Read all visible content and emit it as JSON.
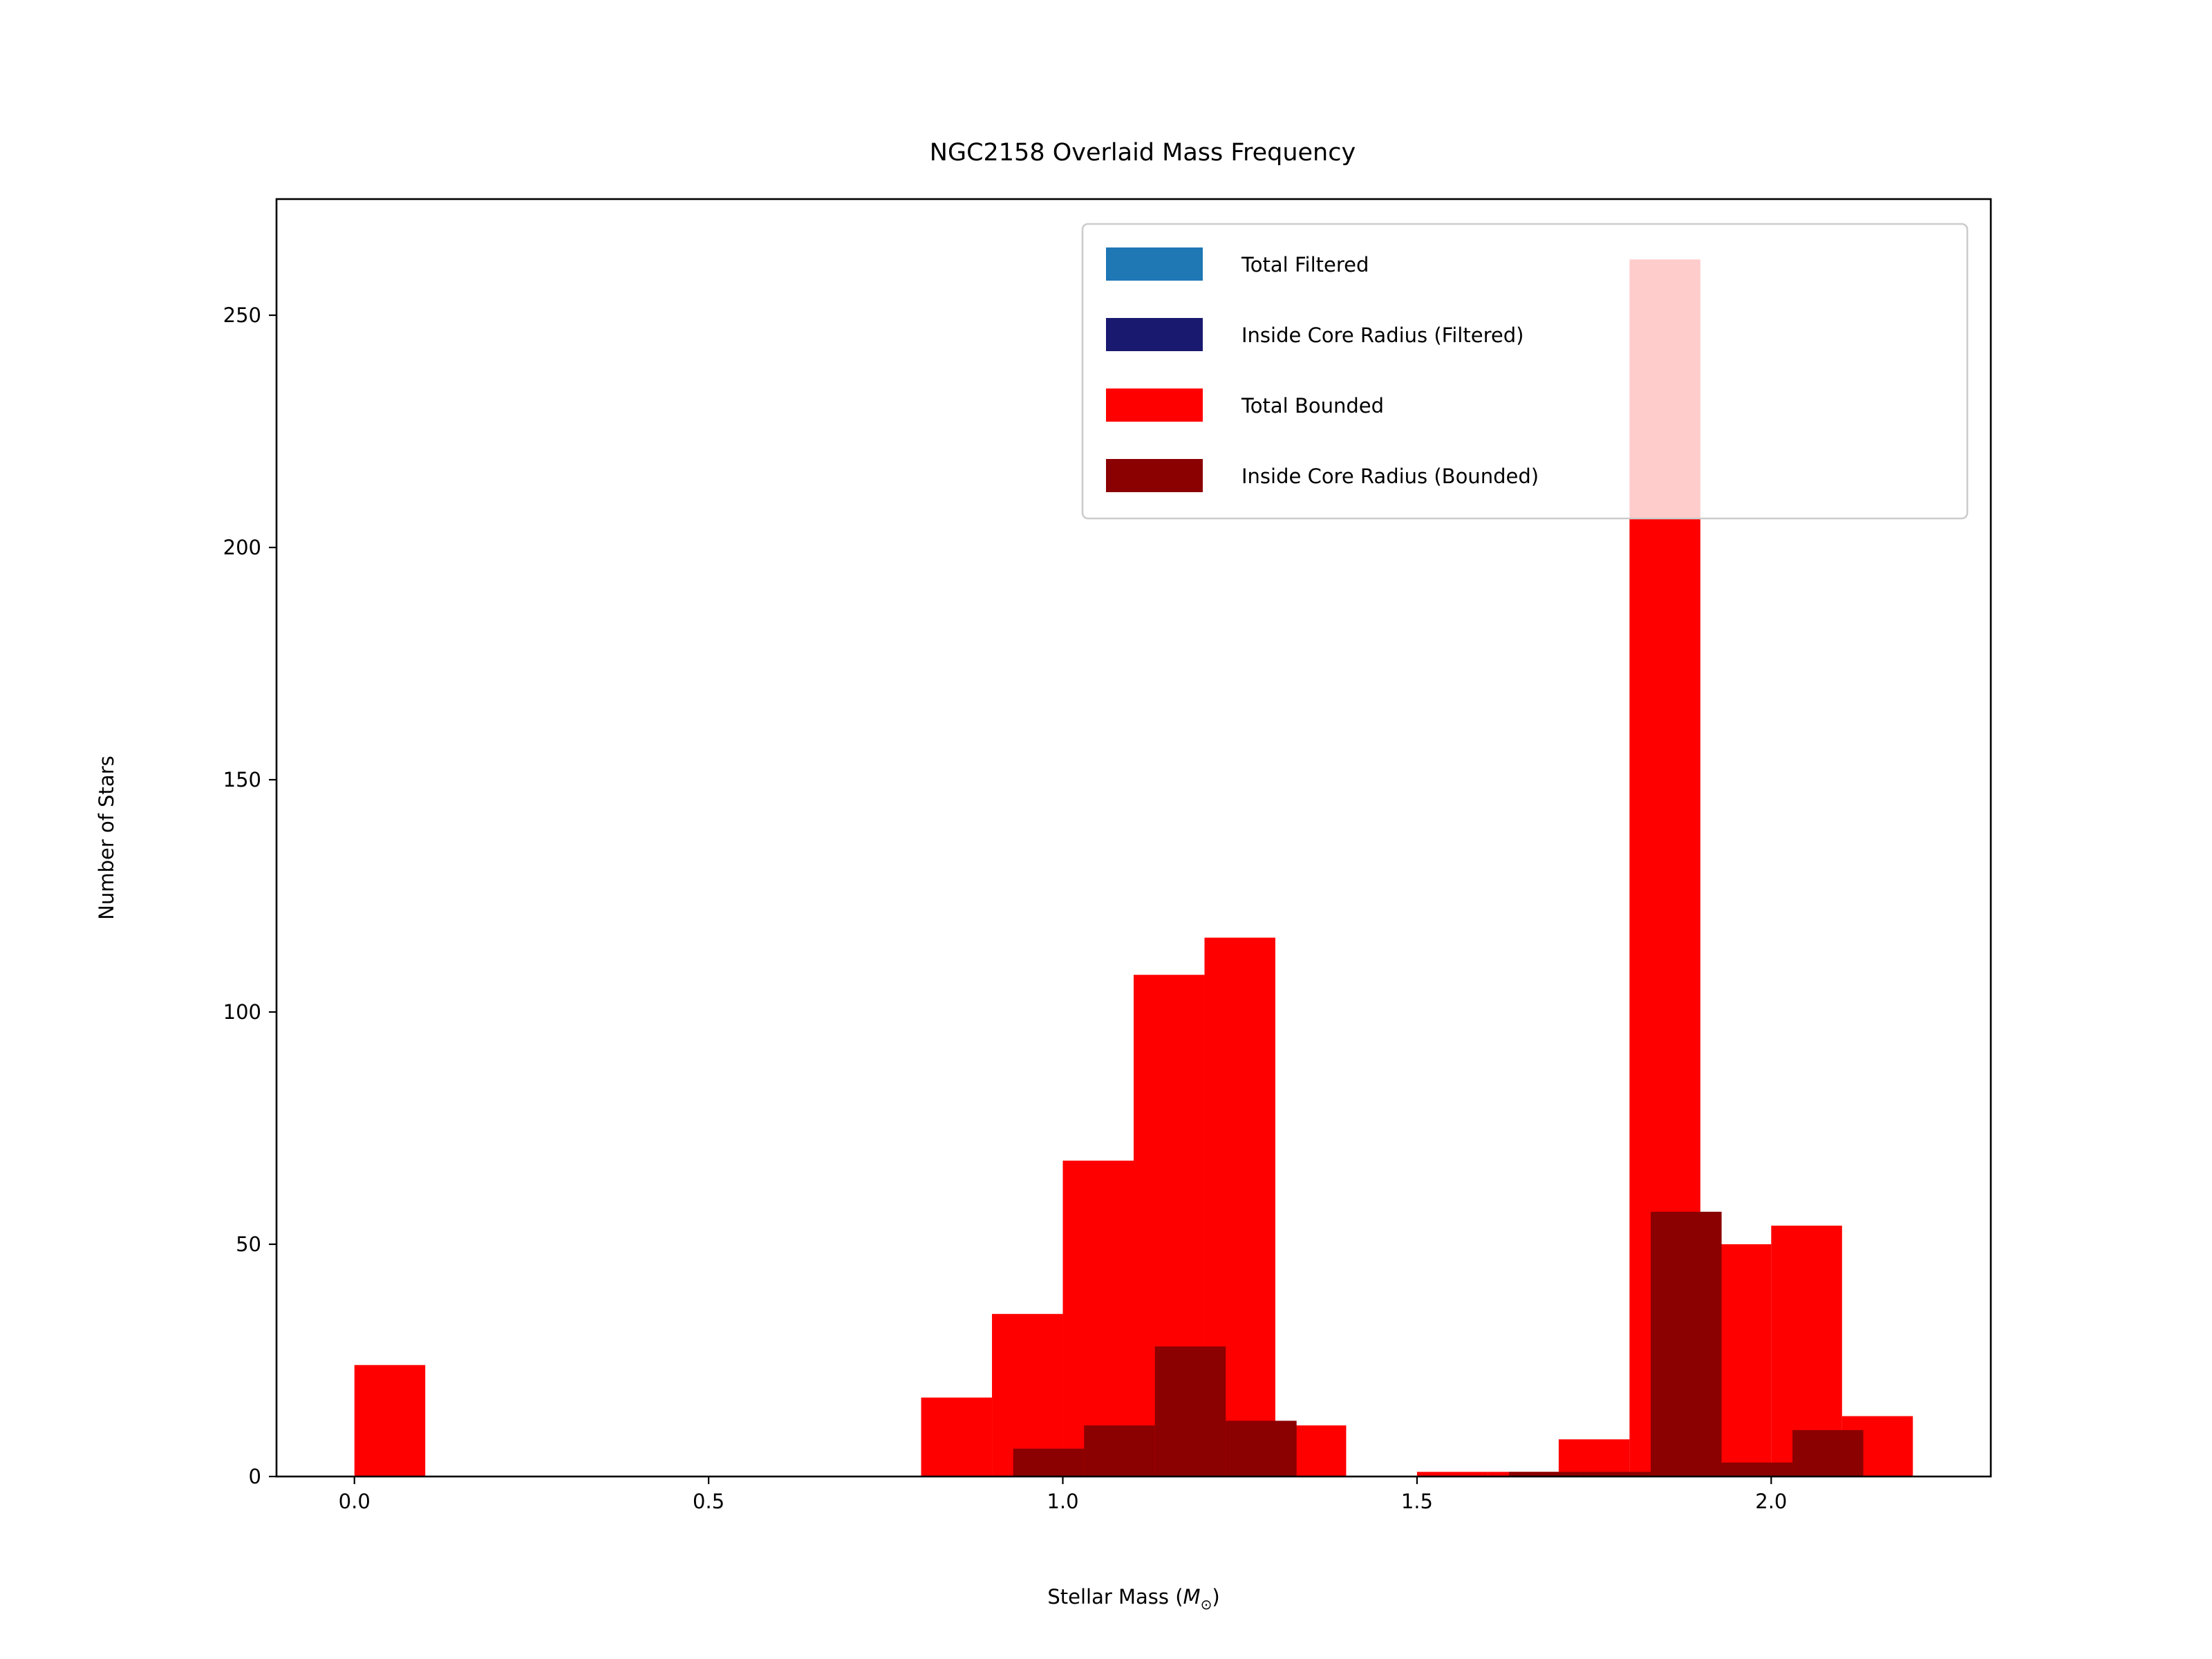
{
  "chart_data": {
    "type": "bar",
    "title": "NGC2158 Overlaid Mass Frequency",
    "xlabel": "Stellar Mass (",
    "xlabel_symbol": "M",
    "xlabel_subscript": "⊙",
    "xlabel_close": ")",
    "ylabel": "Number of Stars",
    "xlim": [
      -0.11,
      2.31
    ],
    "ylim": [
      0,
      275
    ],
    "xticks": [
      0.0,
      0.5,
      1.0,
      1.5,
      2.0
    ],
    "xtick_labels": [
      "0.0",
      "0.5",
      "1.0",
      "1.5",
      "2.0"
    ],
    "yticks": [
      0,
      50,
      100,
      150,
      200,
      250
    ],
    "ytick_labels": [
      "0",
      "50",
      "100",
      "150",
      "200",
      "250"
    ],
    "grid": false,
    "legend_position": "top-right",
    "series": [
      {
        "name": "Total Filtered",
        "color": "#1f77b4",
        "bins": []
      },
      {
        "name": "Inside Core Radius (Filtered)",
        "color": "#191970",
        "bins": []
      },
      {
        "name": "Total Bounded",
        "color": "#ff0000",
        "bins": [
          {
            "x0": 0.0,
            "x1": 0.1,
            "count": 24
          },
          {
            "x0": 0.8,
            "x1": 0.9,
            "count": 17
          },
          {
            "x0": 0.9,
            "x1": 1.0,
            "count": 35
          },
          {
            "x0": 1.0,
            "x1": 1.1,
            "count": 68
          },
          {
            "x0": 1.1,
            "x1": 1.2,
            "count": 108
          },
          {
            "x0": 1.2,
            "x1": 1.3,
            "count": 116
          },
          {
            "x0": 1.3,
            "x1": 1.4,
            "count": 11
          },
          {
            "x0": 1.5,
            "x1": 1.6,
            "count": 1
          },
          {
            "x0": 1.6,
            "x1": 1.7,
            "count": 1
          },
          {
            "x0": 1.7,
            "x1": 1.8,
            "count": 8
          },
          {
            "x0": 1.8,
            "x1": 1.9,
            "count": 262
          },
          {
            "x0": 1.9,
            "x1": 2.0,
            "count": 50
          },
          {
            "x0": 2.0,
            "x1": 2.1,
            "count": 54
          },
          {
            "x0": 2.1,
            "x1": 2.2,
            "count": 13
          }
        ]
      },
      {
        "name": "Inside Core Radius (Bounded)",
        "color": "#8b0000",
        "bins": [
          {
            "x0": 0.93,
            "x1": 1.03,
            "count": 6
          },
          {
            "x0": 1.03,
            "x1": 1.13,
            "count": 11
          },
          {
            "x0": 1.13,
            "x1": 1.23,
            "count": 28
          },
          {
            "x0": 1.23,
            "x1": 1.33,
            "count": 12
          },
          {
            "x0": 1.63,
            "x1": 1.73,
            "count": 1
          },
          {
            "x0": 1.73,
            "x1": 1.83,
            "count": 1
          },
          {
            "x0": 1.83,
            "x1": 1.93,
            "count": 57
          },
          {
            "x0": 1.93,
            "x1": 2.03,
            "count": 3
          },
          {
            "x0": 2.03,
            "x1": 2.13,
            "count": 10
          }
        ]
      }
    ]
  }
}
